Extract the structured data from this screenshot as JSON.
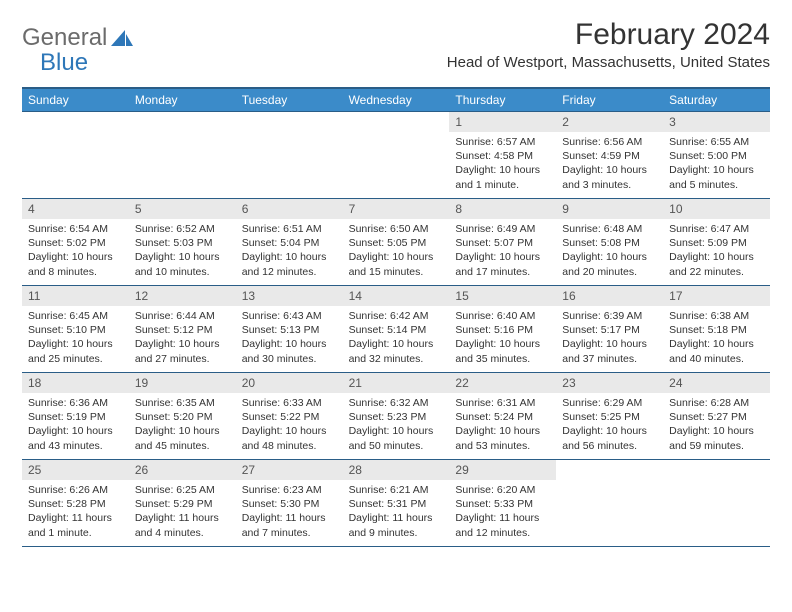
{
  "logo": {
    "word1": "General",
    "word2": "Blue"
  },
  "title": "February 2024",
  "location": "Head of Westport, Massachusetts, United States",
  "colors": {
    "header_bg": "#3b8bc9",
    "header_border": "#2a5d87",
    "daynum_bg": "#e9e9e9",
    "logo_gray": "#6b6b6b",
    "logo_blue": "#2e77b8"
  },
  "day_names": [
    "Sunday",
    "Monday",
    "Tuesday",
    "Wednesday",
    "Thursday",
    "Friday",
    "Saturday"
  ],
  "weeks": [
    [
      null,
      null,
      null,
      null,
      {
        "n": "1",
        "sr": "Sunrise: 6:57 AM",
        "ss": "Sunset: 4:58 PM",
        "dl": "Daylight: 10 hours and 1 minute."
      },
      {
        "n": "2",
        "sr": "Sunrise: 6:56 AM",
        "ss": "Sunset: 4:59 PM",
        "dl": "Daylight: 10 hours and 3 minutes."
      },
      {
        "n": "3",
        "sr": "Sunrise: 6:55 AM",
        "ss": "Sunset: 5:00 PM",
        "dl": "Daylight: 10 hours and 5 minutes."
      }
    ],
    [
      {
        "n": "4",
        "sr": "Sunrise: 6:54 AM",
        "ss": "Sunset: 5:02 PM",
        "dl": "Daylight: 10 hours and 8 minutes."
      },
      {
        "n": "5",
        "sr": "Sunrise: 6:52 AM",
        "ss": "Sunset: 5:03 PM",
        "dl": "Daylight: 10 hours and 10 minutes."
      },
      {
        "n": "6",
        "sr": "Sunrise: 6:51 AM",
        "ss": "Sunset: 5:04 PM",
        "dl": "Daylight: 10 hours and 12 minutes."
      },
      {
        "n": "7",
        "sr": "Sunrise: 6:50 AM",
        "ss": "Sunset: 5:05 PM",
        "dl": "Daylight: 10 hours and 15 minutes."
      },
      {
        "n": "8",
        "sr": "Sunrise: 6:49 AM",
        "ss": "Sunset: 5:07 PM",
        "dl": "Daylight: 10 hours and 17 minutes."
      },
      {
        "n": "9",
        "sr": "Sunrise: 6:48 AM",
        "ss": "Sunset: 5:08 PM",
        "dl": "Daylight: 10 hours and 20 minutes."
      },
      {
        "n": "10",
        "sr": "Sunrise: 6:47 AM",
        "ss": "Sunset: 5:09 PM",
        "dl": "Daylight: 10 hours and 22 minutes."
      }
    ],
    [
      {
        "n": "11",
        "sr": "Sunrise: 6:45 AM",
        "ss": "Sunset: 5:10 PM",
        "dl": "Daylight: 10 hours and 25 minutes."
      },
      {
        "n": "12",
        "sr": "Sunrise: 6:44 AM",
        "ss": "Sunset: 5:12 PM",
        "dl": "Daylight: 10 hours and 27 minutes."
      },
      {
        "n": "13",
        "sr": "Sunrise: 6:43 AM",
        "ss": "Sunset: 5:13 PM",
        "dl": "Daylight: 10 hours and 30 minutes."
      },
      {
        "n": "14",
        "sr": "Sunrise: 6:42 AM",
        "ss": "Sunset: 5:14 PM",
        "dl": "Daylight: 10 hours and 32 minutes."
      },
      {
        "n": "15",
        "sr": "Sunrise: 6:40 AM",
        "ss": "Sunset: 5:16 PM",
        "dl": "Daylight: 10 hours and 35 minutes."
      },
      {
        "n": "16",
        "sr": "Sunrise: 6:39 AM",
        "ss": "Sunset: 5:17 PM",
        "dl": "Daylight: 10 hours and 37 minutes."
      },
      {
        "n": "17",
        "sr": "Sunrise: 6:38 AM",
        "ss": "Sunset: 5:18 PM",
        "dl": "Daylight: 10 hours and 40 minutes."
      }
    ],
    [
      {
        "n": "18",
        "sr": "Sunrise: 6:36 AM",
        "ss": "Sunset: 5:19 PM",
        "dl": "Daylight: 10 hours and 43 minutes."
      },
      {
        "n": "19",
        "sr": "Sunrise: 6:35 AM",
        "ss": "Sunset: 5:20 PM",
        "dl": "Daylight: 10 hours and 45 minutes."
      },
      {
        "n": "20",
        "sr": "Sunrise: 6:33 AM",
        "ss": "Sunset: 5:22 PM",
        "dl": "Daylight: 10 hours and 48 minutes."
      },
      {
        "n": "21",
        "sr": "Sunrise: 6:32 AM",
        "ss": "Sunset: 5:23 PM",
        "dl": "Daylight: 10 hours and 50 minutes."
      },
      {
        "n": "22",
        "sr": "Sunrise: 6:31 AM",
        "ss": "Sunset: 5:24 PM",
        "dl": "Daylight: 10 hours and 53 minutes."
      },
      {
        "n": "23",
        "sr": "Sunrise: 6:29 AM",
        "ss": "Sunset: 5:25 PM",
        "dl": "Daylight: 10 hours and 56 minutes."
      },
      {
        "n": "24",
        "sr": "Sunrise: 6:28 AM",
        "ss": "Sunset: 5:27 PM",
        "dl": "Daylight: 10 hours and 59 minutes."
      }
    ],
    [
      {
        "n": "25",
        "sr": "Sunrise: 6:26 AM",
        "ss": "Sunset: 5:28 PM",
        "dl": "Daylight: 11 hours and 1 minute."
      },
      {
        "n": "26",
        "sr": "Sunrise: 6:25 AM",
        "ss": "Sunset: 5:29 PM",
        "dl": "Daylight: 11 hours and 4 minutes."
      },
      {
        "n": "27",
        "sr": "Sunrise: 6:23 AM",
        "ss": "Sunset: 5:30 PM",
        "dl": "Daylight: 11 hours and 7 minutes."
      },
      {
        "n": "28",
        "sr": "Sunrise: 6:21 AM",
        "ss": "Sunset: 5:31 PM",
        "dl": "Daylight: 11 hours and 9 minutes."
      },
      {
        "n": "29",
        "sr": "Sunrise: 6:20 AM",
        "ss": "Sunset: 5:33 PM",
        "dl": "Daylight: 11 hours and 12 minutes."
      },
      null,
      null
    ]
  ]
}
